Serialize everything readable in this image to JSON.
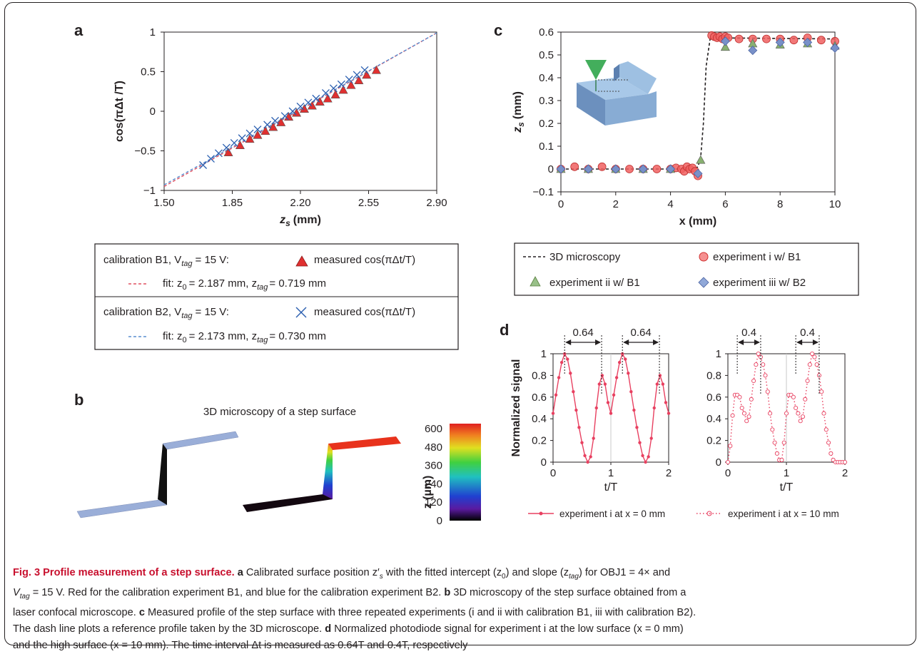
{
  "panel_labels": {
    "a": "a",
    "b": "b",
    "c": "c",
    "d": "d"
  },
  "legend_a": {
    "b1_header": "calibration B1, V",
    "b1_header_sub": "tag",
    "b1_header_tail": "= 15 V:",
    "b1_marker_label": "measured cos(πΔt/T)",
    "b1_fit": "fit: z",
    "b1_fit_tail1": "= 2.187 mm, z",
    "b1_fit_tail2": "= 0.719 mm",
    "b2_header": "calibration B2, V",
    "b2_header_sub": "tag",
    "b2_header_tail": "= 15 V:",
    "b2_marker_label": "measured cos(πΔt/T)",
    "b2_fit": "fit: z",
    "b2_fit_tail1": "= 2.173 mm, z",
    "b2_fit_tail2": "= 0.730 mm",
    "sub0": "0",
    "subtag": "tag"
  },
  "panel_b": {
    "title": "3D microscopy of a step surface",
    "colorbar_ticks": [
      "600",
      "480",
      "360",
      "240",
      "120",
      "0"
    ],
    "colorbar_label": "z (µm)"
  },
  "legend_c": {
    "ref": "3D microscopy",
    "exp1": "experiment i w/ B1",
    "exp2": "experiment ii w/ B1",
    "exp3": "experiment iii w/ B2"
  },
  "legend_d": {
    "s1": "experiment i at x = 0 mm",
    "s2": "experiment i at x = 10 mm"
  },
  "caption": {
    "title": "Fig. 3 Profile measurement of a step surface.",
    "a_label": "a",
    "a_text1": " Calibrated surface position z′",
    "a_text1_sub": "s",
    "a_text2": " with the fitted intercept (z",
    "a_text3": ") and slope (z",
    "a_text4": ") for OBJ1 = 4× and",
    "line2_a": "V",
    "line2_b": " = 15 V. Red for the calibration experiment B1, and blue for the calibration experiment B2. ",
    "b_label": "b",
    "b_text": " 3D microscopy of the step surface obtained from a",
    "line3": "laser confocal microscope. ",
    "c_label": "c",
    "c_text": " Measured profile of the step surface with three repeated experiments (i and ii with calibration B1, iii with calibration B2).",
    "line4": "The dash line plots a reference profile taken by the 3D microscope. ",
    "d_label": "d",
    "d_text": " Normalized photodiode signal for experiment i at the low surface (x = 0 mm)",
    "line5": "and the high surface (x = 10 mm). The time interval Δt is measured as 0.64T and 0.4T, respectively"
  },
  "chart_data": [
    {
      "panel": "a",
      "type": "scatter",
      "xlabel": "z_s (mm)",
      "ylabel": "cos(πΔt /T)",
      "xlim": [
        1.5,
        2.9
      ],
      "ylim": [
        -1,
        1
      ],
      "xticks": [
        "1.50",
        "1.85",
        "2.20",
        "2.55",
        "2.90"
      ],
      "yticks": [
        "1",
        "0.5",
        "0",
        "−0.5",
        "−1"
      ],
      "series": [
        {
          "name": "calibration B1",
          "marker": "triangle",
          "color": "#e03030",
          "x": [
            1.83,
            1.89,
            1.94,
            1.98,
            2.02,
            2.06,
            2.1,
            2.14,
            2.18,
            2.22,
            2.26,
            2.3,
            2.34,
            2.38,
            2.42,
            2.46,
            2.5,
            2.54,
            2.59
          ],
          "y": [
            -0.52,
            -0.43,
            -0.35,
            -0.3,
            -0.25,
            -0.2,
            -0.14,
            -0.07,
            -0.02,
            0.03,
            0.07,
            0.12,
            0.16,
            0.21,
            0.27,
            0.33,
            0.39,
            0.46,
            0.52
          ]
        },
        {
          "name": "calibration B2",
          "marker": "cross",
          "color": "#2b5fb0",
          "x": [
            1.7,
            1.74,
            1.78,
            1.82,
            1.86,
            1.9,
            1.94,
            1.98,
            2.03,
            2.07,
            2.12,
            2.16,
            2.2,
            2.24,
            2.28,
            2.33,
            2.37,
            2.41,
            2.45,
            2.49,
            2.53
          ],
          "y": [
            -0.68,
            -0.6,
            -0.53,
            -0.46,
            -0.4,
            -0.34,
            -0.28,
            -0.23,
            -0.17,
            -0.12,
            -0.06,
            0.0,
            0.06,
            0.11,
            0.16,
            0.23,
            0.29,
            0.34,
            0.4,
            0.46,
            0.52
          ]
        },
        {
          "name": "fit B1",
          "type": "line",
          "color": "#e05060",
          "x": [
            1.5,
            2.9
          ],
          "y": [
            -0.95,
            0.99
          ]
        },
        {
          "name": "fit B2",
          "type": "line",
          "color": "#5a8ed0",
          "x": [
            1.5,
            2.9
          ],
          "y": [
            -0.93,
            0.99
          ]
        }
      ]
    },
    {
      "panel": "c",
      "type": "scatter",
      "xlabel": "x (mm)",
      "ylabel": "z_s (mm)",
      "xlim": [
        0,
        10
      ],
      "ylim": [
        -0.1,
        0.6
      ],
      "xticks": [
        "0",
        "2",
        "4",
        "6",
        "8",
        "10"
      ],
      "yticks": [
        "0.6",
        "0.5",
        "0.4",
        "0.3",
        "0.2",
        "0.1",
        "0",
        "−0.1"
      ],
      "series": [
        {
          "name": "3D microscopy",
          "type": "line",
          "color": "#231f20",
          "x": [
            0,
            4.9,
            5.0,
            5.1,
            5.2,
            5.3,
            5.45,
            10
          ],
          "y": [
            0.0,
            0.0,
            0.01,
            0.05,
            0.2,
            0.45,
            0.575,
            0.57
          ]
        },
        {
          "name": "experiment i w/ B1",
          "marker": "circle",
          "color": "#f06060",
          "x": [
            0,
            0.5,
            1,
            1.5,
            2,
            2.5,
            3,
            3.5,
            4,
            4.2,
            4.4,
            4.5,
            4.6,
            4.7,
            4.8,
            4.9,
            5.0,
            5.5,
            5.6,
            5.7,
            5.8,
            5.9,
            6.0,
            6.1,
            6.5,
            7,
            7.5,
            8,
            8.5,
            9,
            9.5,
            10
          ],
          "y": [
            0.0,
            0.01,
            0.0,
            0.01,
            0.0,
            0.0,
            0.0,
            0.0,
            0.0,
            0.005,
            0.0,
            -0.01,
            0.01,
            0.0,
            0.005,
            -0.01,
            -0.03,
            0.585,
            0.58,
            0.575,
            0.58,
            0.57,
            0.58,
            0.575,
            0.57,
            0.57,
            0.57,
            0.57,
            0.565,
            0.575,
            0.565,
            0.56
          ]
        },
        {
          "name": "experiment ii w/ B1",
          "marker": "triangle",
          "color": "#88b070",
          "x": [
            0,
            1,
            2,
            3,
            4,
            5.1,
            6,
            7,
            8,
            9,
            10
          ],
          "y": [
            0.0,
            0.0,
            0.0,
            0.0,
            0.0,
            0.04,
            0.535,
            0.55,
            0.545,
            0.55,
            0.54
          ]
        },
        {
          "name": "experiment iii w/ B2",
          "marker": "diamond",
          "color": "#7890c8",
          "x": [
            0,
            1,
            2,
            3,
            4,
            5.0,
            6,
            7,
            8,
            9,
            10
          ],
          "y": [
            0.0,
            0.0,
            0.0,
            0.0,
            0.0,
            -0.02,
            0.56,
            0.52,
            0.555,
            0.555,
            0.53
          ]
        }
      ]
    },
    {
      "panel": "d-left",
      "type": "line",
      "xlabel": "t/T",
      "ylabel": "Normalized signal",
      "xlim": [
        0,
        2
      ],
      "ylim": [
        0,
        1
      ],
      "xticks": [
        "0",
        "1",
        "2"
      ],
      "yticks": [
        "1",
        "0.8",
        "0.6",
        "0.4",
        "0.2",
        "0"
      ],
      "interval_labels": [
        "0.64",
        "0.64"
      ],
      "series": [
        {
          "name": "experiment i at x = 0 mm",
          "color": "#e84060",
          "x": [
            0,
            0.05,
            0.1,
            0.15,
            0.2,
            0.25,
            0.3,
            0.35,
            0.4,
            0.45,
            0.5,
            0.55,
            0.6,
            0.65,
            0.7,
            0.75,
            0.8,
            0.85,
            0.9,
            0.95,
            1.0,
            1.05,
            1.1,
            1.15,
            1.2,
            1.25,
            1.3,
            1.35,
            1.4,
            1.45,
            1.5,
            1.55,
            1.6,
            1.65,
            1.7,
            1.75,
            1.8,
            1.85,
            1.9,
            1.95,
            2.0
          ],
          "y": [
            0.45,
            0.62,
            0.78,
            0.92,
            1.0,
            0.95,
            0.82,
            0.65,
            0.48,
            0.32,
            0.18,
            0.06,
            0.0,
            0.05,
            0.22,
            0.5,
            0.72,
            0.8,
            0.72,
            0.55,
            0.45,
            0.62,
            0.78,
            0.92,
            1.0,
            0.95,
            0.82,
            0.65,
            0.48,
            0.32,
            0.18,
            0.06,
            0.0,
            0.05,
            0.22,
            0.5,
            0.72,
            0.8,
            0.72,
            0.55,
            0.45
          ]
        }
      ]
    },
    {
      "panel": "d-right",
      "type": "line",
      "xlabel": "t/T",
      "xlim": [
        0,
        2
      ],
      "ylim": [
        0,
        1
      ],
      "xticks": [
        "0",
        "1",
        "2"
      ],
      "yticks": [
        "1",
        "0.8",
        "0.6",
        "0.4",
        "0.2",
        "0"
      ],
      "interval_labels": [
        "0.4",
        "0.4"
      ],
      "series": [
        {
          "name": "experiment i at x = 10 mm",
          "color": "#e84060",
          "x": [
            0,
            0.04,
            0.08,
            0.12,
            0.16,
            0.2,
            0.24,
            0.28,
            0.32,
            0.36,
            0.4,
            0.44,
            0.48,
            0.52,
            0.56,
            0.6,
            0.64,
            0.68,
            0.72,
            0.76,
            0.8,
            0.84,
            0.88,
            0.92,
            0.96,
            1.0,
            1.04,
            1.08,
            1.12,
            1.16,
            1.2,
            1.24,
            1.28,
            1.32,
            1.36,
            1.4,
            1.44,
            1.48,
            1.52,
            1.56,
            1.6,
            1.64,
            1.68,
            1.72,
            1.76,
            1.8,
            1.84,
            1.88,
            1.92,
            1.96,
            2.0
          ],
          "y": [
            0.0,
            0.15,
            0.43,
            0.62,
            0.62,
            0.6,
            0.5,
            0.45,
            0.38,
            0.42,
            0.58,
            0.75,
            0.9,
            1.0,
            0.97,
            0.9,
            0.8,
            0.65,
            0.45,
            0.3,
            0.18,
            0.08,
            0.02,
            0.02,
            0.18,
            0.45,
            0.62,
            0.62,
            0.6,
            0.5,
            0.45,
            0.38,
            0.42,
            0.58,
            0.75,
            0.9,
            1.0,
            0.97,
            0.9,
            0.8,
            0.65,
            0.45,
            0.3,
            0.18,
            0.08,
            0.02,
            0.0,
            0.0,
            0.0,
            0.0,
            0.0
          ]
        }
      ]
    }
  ]
}
